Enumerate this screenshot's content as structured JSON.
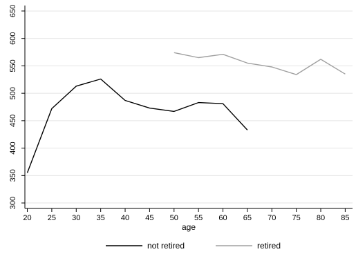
{
  "chart_data": {
    "type": "line",
    "xlabel": "age",
    "ylabel": "",
    "x_ticks": [
      20,
      25,
      30,
      35,
      40,
      45,
      50,
      55,
      60,
      65,
      70,
      75,
      80,
      85
    ],
    "y_ticks": [
      300,
      350,
      400,
      450,
      500,
      550,
      600,
      650
    ],
    "xlim": [
      19.5,
      86.5
    ],
    "ylim": [
      290,
      660
    ],
    "grid": true,
    "legend_position": "bottom",
    "series": [
      {
        "name": "not retired",
        "color": "#000000",
        "x": [
          20,
          25,
          30,
          35,
          40,
          45,
          50,
          55,
          60,
          65
        ],
        "y": [
          355,
          472,
          513,
          526,
          487,
          473,
          467,
          483,
          481,
          433
        ]
      },
      {
        "name": "retired",
        "color": "#a0a0a0",
        "x": [
          50,
          55,
          60,
          65,
          70,
          75,
          80,
          85
        ],
        "y": [
          574,
          565,
          571,
          555,
          548,
          534,
          562,
          535
        ]
      }
    ]
  }
}
